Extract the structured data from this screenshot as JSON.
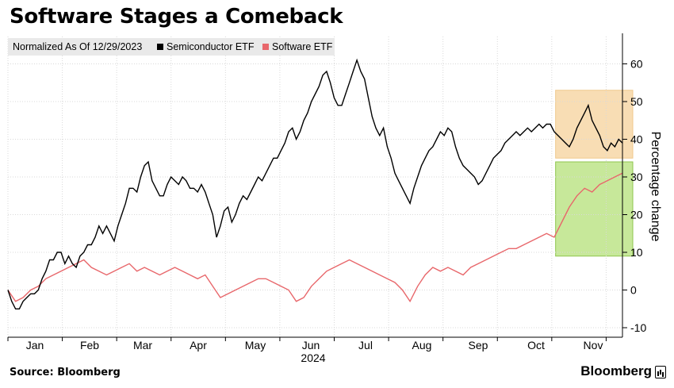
{
  "title": "Software Stages a Comeback",
  "source": "Source: Bloomberg",
  "brand": "Bloomberg",
  "chart_data": {
    "type": "line",
    "legend_title": "Normalized As Of 12/29/2023",
    "legend_placement": "top-left",
    "xlabel": "",
    "xlabel_year": "2024",
    "ylabel": "Percentage change",
    "ylim": [
      -12,
      65
    ],
    "yticks": [
      -10,
      0,
      10,
      20,
      30,
      40,
      50,
      60
    ],
    "xticks": [
      "Jan",
      "Feb",
      "Mar",
      "Apr",
      "May",
      "Jun",
      "Jul",
      "Aug",
      "Sep",
      "Oct",
      "Nov"
    ],
    "grid": true,
    "series": [
      {
        "name": "Semiconductor ETF",
        "color": "#000000",
        "points": [
          [
            0,
            0
          ],
          [
            1,
            -3
          ],
          [
            2,
            -5
          ],
          [
            3,
            -5
          ],
          [
            4,
            -3
          ],
          [
            5,
            -2
          ],
          [
            6,
            -1
          ],
          [
            7,
            -1
          ],
          [
            8,
            0
          ],
          [
            9,
            3
          ],
          [
            10,
            5
          ],
          [
            11,
            8
          ],
          [
            12,
            8
          ],
          [
            13,
            10
          ],
          [
            14,
            10
          ],
          [
            15,
            7
          ],
          [
            16,
            9
          ],
          [
            17,
            7
          ],
          [
            18,
            6
          ],
          [
            19,
            9
          ],
          [
            20,
            10
          ],
          [
            21,
            12
          ],
          [
            22,
            12
          ],
          [
            23,
            14
          ],
          [
            24,
            17
          ],
          [
            25,
            15
          ],
          [
            26,
            17
          ],
          [
            27,
            15
          ],
          [
            28,
            13
          ],
          [
            29,
            17
          ],
          [
            30,
            20
          ],
          [
            31,
            23
          ],
          [
            32,
            27
          ],
          [
            33,
            27
          ],
          [
            34,
            26
          ],
          [
            35,
            30
          ],
          [
            36,
            33
          ],
          [
            37,
            34
          ],
          [
            38,
            29
          ],
          [
            39,
            27
          ],
          [
            40,
            25
          ],
          [
            41,
            25
          ],
          [
            42,
            28
          ],
          [
            43,
            30
          ],
          [
            44,
            29
          ],
          [
            45,
            28
          ],
          [
            46,
            30
          ],
          [
            47,
            29
          ],
          [
            48,
            27
          ],
          [
            49,
            27
          ],
          [
            50,
            26
          ],
          [
            51,
            28
          ],
          [
            52,
            26
          ],
          [
            53,
            23
          ],
          [
            54,
            20
          ],
          [
            55,
            14
          ],
          [
            56,
            17
          ],
          [
            57,
            21
          ],
          [
            58,
            22
          ],
          [
            59,
            18
          ],
          [
            60,
            20
          ],
          [
            61,
            23
          ],
          [
            62,
            25
          ],
          [
            63,
            24
          ],
          [
            64,
            26
          ],
          [
            65,
            28
          ],
          [
            66,
            30
          ],
          [
            67,
            29
          ],
          [
            68,
            31
          ],
          [
            69,
            33
          ],
          [
            70,
            35
          ],
          [
            71,
            35
          ],
          [
            72,
            37
          ],
          [
            73,
            39
          ],
          [
            74,
            42
          ],
          [
            75,
            43
          ],
          [
            76,
            40
          ],
          [
            77,
            42
          ],
          [
            78,
            45
          ],
          [
            79,
            47
          ],
          [
            80,
            50
          ],
          [
            81,
            52
          ],
          [
            82,
            54
          ],
          [
            83,
            57
          ],
          [
            84,
            58
          ],
          [
            85,
            55
          ],
          [
            86,
            51
          ],
          [
            87,
            49
          ],
          [
            88,
            49
          ],
          [
            89,
            52
          ],
          [
            90,
            55
          ],
          [
            91,
            58
          ],
          [
            92,
            61
          ],
          [
            93,
            58
          ],
          [
            94,
            56
          ],
          [
            95,
            51
          ],
          [
            96,
            46
          ],
          [
            97,
            43
          ],
          [
            98,
            41
          ],
          [
            99,
            43
          ],
          [
            100,
            38
          ],
          [
            101,
            35
          ],
          [
            102,
            31
          ],
          [
            103,
            29
          ],
          [
            104,
            27
          ],
          [
            105,
            25
          ],
          [
            106,
            23
          ],
          [
            107,
            27
          ],
          [
            108,
            30
          ],
          [
            109,
            33
          ],
          [
            110,
            35
          ],
          [
            111,
            37
          ],
          [
            112,
            38
          ],
          [
            113,
            40
          ],
          [
            114,
            42
          ],
          [
            115,
            41
          ],
          [
            116,
            43
          ],
          [
            117,
            42
          ],
          [
            118,
            38
          ],
          [
            119,
            35
          ],
          [
            120,
            33
          ],
          [
            121,
            32
          ],
          [
            122,
            31
          ],
          [
            123,
            30
          ],
          [
            124,
            28
          ],
          [
            125,
            29
          ],
          [
            126,
            31
          ],
          [
            127,
            33
          ],
          [
            128,
            35
          ],
          [
            129,
            36
          ],
          [
            130,
            37
          ],
          [
            131,
            39
          ],
          [
            132,
            40
          ],
          [
            133,
            41
          ],
          [
            134,
            42
          ],
          [
            135,
            41
          ],
          [
            136,
            42
          ],
          [
            137,
            43
          ],
          [
            138,
            42
          ],
          [
            139,
            43
          ],
          [
            140,
            44
          ],
          [
            141,
            43
          ],
          [
            142,
            44
          ],
          [
            143,
            44
          ],
          [
            144,
            42
          ],
          [
            145,
            41
          ],
          [
            146,
            40
          ],
          [
            147,
            39
          ],
          [
            148,
            38
          ],
          [
            149,
            40
          ],
          [
            150,
            43
          ],
          [
            151,
            45
          ],
          [
            152,
            47
          ],
          [
            153,
            49
          ],
          [
            154,
            45
          ],
          [
            155,
            43
          ],
          [
            156,
            41
          ],
          [
            157,
            38
          ],
          [
            158,
            37
          ],
          [
            159,
            39
          ],
          [
            160,
            38
          ],
          [
            161,
            40
          ],
          [
            162,
            39
          ]
        ]
      },
      {
        "name": "Software ETF",
        "color": "#e8676b",
        "points": [
          [
            0,
            0
          ],
          [
            2,
            -3
          ],
          [
            4,
            -2
          ],
          [
            6,
            0
          ],
          [
            8,
            1
          ],
          [
            10,
            3
          ],
          [
            12,
            4
          ],
          [
            14,
            5
          ],
          [
            16,
            6
          ],
          [
            18,
            7
          ],
          [
            20,
            8
          ],
          [
            22,
            6
          ],
          [
            24,
            5
          ],
          [
            26,
            4
          ],
          [
            28,
            5
          ],
          [
            30,
            6
          ],
          [
            32,
            7
          ],
          [
            34,
            5
          ],
          [
            36,
            6
          ],
          [
            38,
            5
          ],
          [
            40,
            4
          ],
          [
            42,
            5
          ],
          [
            44,
            6
          ],
          [
            46,
            5
          ],
          [
            48,
            4
          ],
          [
            50,
            3
          ],
          [
            52,
            4
          ],
          [
            54,
            1
          ],
          [
            56,
            -2
          ],
          [
            58,
            -1
          ],
          [
            60,
            0
          ],
          [
            62,
            1
          ],
          [
            64,
            2
          ],
          [
            66,
            3
          ],
          [
            68,
            3
          ],
          [
            70,
            2
          ],
          [
            72,
            1
          ],
          [
            74,
            0
          ],
          [
            76,
            -3
          ],
          [
            78,
            -2
          ],
          [
            80,
            1
          ],
          [
            82,
            3
          ],
          [
            84,
            5
          ],
          [
            86,
            6
          ],
          [
            88,
            7
          ],
          [
            90,
            8
          ],
          [
            92,
            7
          ],
          [
            94,
            6
          ],
          [
            96,
            5
          ],
          [
            98,
            4
          ],
          [
            100,
            3
          ],
          [
            102,
            2
          ],
          [
            104,
            0
          ],
          [
            106,
            -3
          ],
          [
            108,
            1
          ],
          [
            110,
            4
          ],
          [
            112,
            6
          ],
          [
            114,
            5
          ],
          [
            116,
            6
          ],
          [
            118,
            5
          ],
          [
            120,
            4
          ],
          [
            122,
            6
          ],
          [
            124,
            7
          ],
          [
            126,
            8
          ],
          [
            128,
            9
          ],
          [
            130,
            10
          ],
          [
            132,
            11
          ],
          [
            134,
            11
          ],
          [
            136,
            12
          ],
          [
            138,
            13
          ],
          [
            140,
            14
          ],
          [
            142,
            15
          ],
          [
            144,
            14
          ],
          [
            146,
            18
          ],
          [
            148,
            22
          ],
          [
            150,
            25
          ],
          [
            152,
            27
          ],
          [
            154,
            26
          ],
          [
            156,
            28
          ],
          [
            158,
            29
          ],
          [
            160,
            30
          ],
          [
            162,
            31
          ]
        ]
      }
    ],
    "highlights": [
      {
        "color": "#f8ddb4",
        "x0": 145,
        "x1": 162,
        "y0": 35,
        "y1": 53
      },
      {
        "color": "#c7e89a",
        "x0": 145,
        "x1": 162,
        "y0": 9,
        "y1": 34
      }
    ]
  }
}
